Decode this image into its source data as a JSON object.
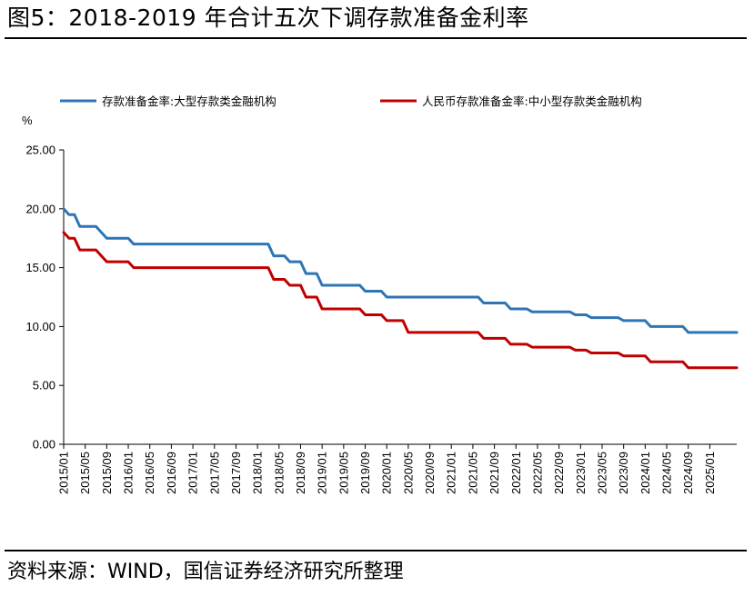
{
  "figure": {
    "title": "图5：2018-2019 年合计五次下调存款准备金利率",
    "source": "资料来源：WIND，国信证券经济研究所整理"
  },
  "chart_data": {
    "type": "line",
    "ylabel": "%",
    "ylim": [
      0,
      25
    ],
    "yticks": [
      "0.00",
      "5.00",
      "10.00",
      "15.00",
      "20.00",
      "25.00"
    ],
    "xlim": [
      "2015/01",
      "2025/06"
    ],
    "xticks": [
      "2015/01",
      "2015/05",
      "2015/09",
      "2016/01",
      "2016/05",
      "2016/09",
      "2017/01",
      "2017/05",
      "2017/09",
      "2018/01",
      "2018/05",
      "2018/09",
      "2019/01",
      "2019/05",
      "2019/09",
      "2020/01",
      "2020/05",
      "2020/09",
      "2021/01",
      "2021/05",
      "2021/09",
      "2022/01",
      "2022/05",
      "2022/09",
      "2023/01",
      "2023/05",
      "2023/09",
      "2024/01",
      "2024/05",
      "2024/09",
      "2025/01"
    ],
    "legend_position": "top",
    "grid": false,
    "series": [
      {
        "name": "存款准备金率:大型存款类金融机构",
        "color": "#2E75B6",
        "points": [
          [
            "2015/01",
            20.0
          ],
          [
            "2015/02",
            19.5
          ],
          [
            "2015/03",
            19.5
          ],
          [
            "2015/04",
            18.5
          ],
          [
            "2015/06",
            18.5
          ],
          [
            "2015/07",
            18.5
          ],
          [
            "2015/08",
            18.0
          ],
          [
            "2015/09",
            17.5
          ],
          [
            "2015/12",
            17.5
          ],
          [
            "2016/01",
            17.5
          ],
          [
            "2016/02",
            17.0
          ],
          [
            "2016/03",
            17.0
          ],
          [
            "2018/03",
            17.0
          ],
          [
            "2018/04",
            16.0
          ],
          [
            "2018/06",
            16.0
          ],
          [
            "2018/07",
            15.5
          ],
          [
            "2018/09",
            15.5
          ],
          [
            "2018/10",
            14.5
          ],
          [
            "2018/12",
            14.5
          ],
          [
            "2019/01",
            13.5
          ],
          [
            "2019/08",
            13.5
          ],
          [
            "2019/09",
            13.0
          ],
          [
            "2019/12",
            13.0
          ],
          [
            "2020/01",
            12.5
          ],
          [
            "2021/06",
            12.5
          ],
          [
            "2021/07",
            12.0
          ],
          [
            "2021/11",
            12.0
          ],
          [
            "2021/12",
            11.5
          ],
          [
            "2022/03",
            11.5
          ],
          [
            "2022/04",
            11.25
          ],
          [
            "2022/11",
            11.25
          ],
          [
            "2022/12",
            11.0
          ],
          [
            "2023/02",
            11.0
          ],
          [
            "2023/03",
            10.75
          ],
          [
            "2023/08",
            10.75
          ],
          [
            "2023/09",
            10.5
          ],
          [
            "2024/01",
            10.5
          ],
          [
            "2024/02",
            10.0
          ],
          [
            "2024/08",
            10.0
          ],
          [
            "2024/09",
            9.5
          ],
          [
            "2025/06",
            9.5
          ]
        ]
      },
      {
        "name": "人民币存款准备金率:中小型存款类金融机构",
        "color": "#C00000",
        "points": [
          [
            "2015/01",
            18.0
          ],
          [
            "2015/02",
            17.5
          ],
          [
            "2015/03",
            17.5
          ],
          [
            "2015/04",
            16.5
          ],
          [
            "2015/06",
            16.5
          ],
          [
            "2015/07",
            16.5
          ],
          [
            "2015/08",
            16.0
          ],
          [
            "2015/09",
            15.5
          ],
          [
            "2015/12",
            15.5
          ],
          [
            "2016/01",
            15.5
          ],
          [
            "2016/02",
            15.0
          ],
          [
            "2016/03",
            15.0
          ],
          [
            "2018/03",
            15.0
          ],
          [
            "2018/04",
            14.0
          ],
          [
            "2018/06",
            14.0
          ],
          [
            "2018/07",
            13.5
          ],
          [
            "2018/09",
            13.5
          ],
          [
            "2018/10",
            12.5
          ],
          [
            "2018/12",
            12.5
          ],
          [
            "2019/01",
            11.5
          ],
          [
            "2019/08",
            11.5
          ],
          [
            "2019/09",
            11.0
          ],
          [
            "2019/12",
            11.0
          ],
          [
            "2020/01",
            10.5
          ],
          [
            "2020/04",
            10.5
          ],
          [
            "2020/05",
            9.5
          ],
          [
            "2021/06",
            9.5
          ],
          [
            "2021/07",
            9.0
          ],
          [
            "2021/11",
            9.0
          ],
          [
            "2021/12",
            8.5
          ],
          [
            "2022/03",
            8.5
          ],
          [
            "2022/04",
            8.25
          ],
          [
            "2022/11",
            8.25
          ],
          [
            "2022/12",
            8.0
          ],
          [
            "2023/02",
            8.0
          ],
          [
            "2023/03",
            7.75
          ],
          [
            "2023/08",
            7.75
          ],
          [
            "2023/09",
            7.5
          ],
          [
            "2024/01",
            7.5
          ],
          [
            "2024/02",
            7.0
          ],
          [
            "2024/08",
            7.0
          ],
          [
            "2024/09",
            6.5
          ],
          [
            "2025/06",
            6.5
          ]
        ]
      }
    ]
  }
}
